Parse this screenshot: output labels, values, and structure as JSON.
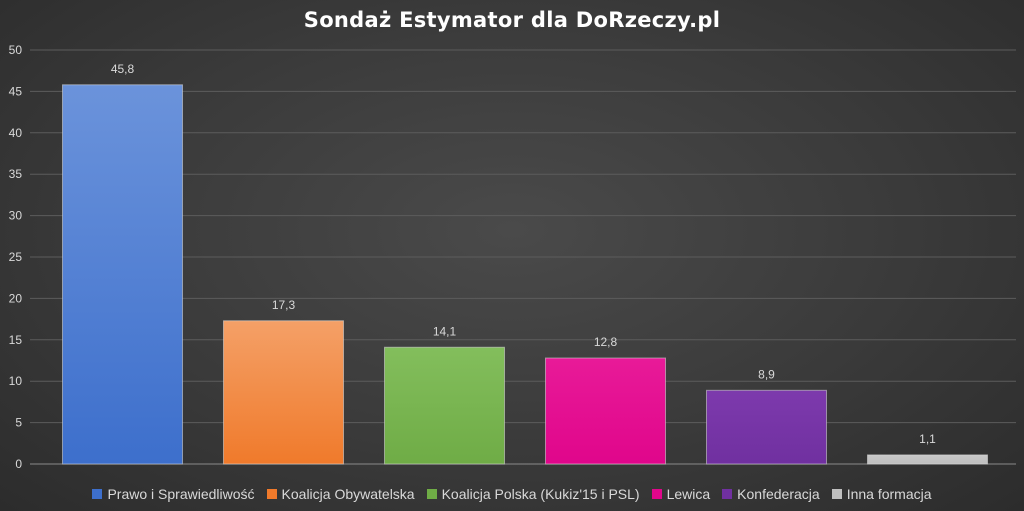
{
  "chart_data": {
    "type": "bar",
    "title": "Sondaż Estymator dla DoRzeczy.pl",
    "xlabel": "",
    "ylabel": "",
    "ylim": [
      0,
      50
    ],
    "yticks": [
      0,
      5,
      10,
      15,
      20,
      25,
      30,
      35,
      40,
      45,
      50
    ],
    "grid": true,
    "legend_position": "bottom",
    "categories": [
      "Prawo i Sprawiedliwość",
      "Koalicja Obywatelska",
      "Koalicja Polska (Kukiz'15 i PSL)",
      "Lewica",
      "Konfederacja",
      "Inna formacja"
    ],
    "values": [
      45.8,
      17.3,
      14.1,
      12.8,
      8.9,
      1.1
    ],
    "value_labels": [
      "45,8",
      "17,3",
      "14,1",
      "12,8",
      "8,9",
      "1,1"
    ],
    "colors": [
      "#3d6fcc",
      "#f07a2b",
      "#6fac46",
      "#e0068b",
      "#7030a0",
      "#bfbfbf"
    ],
    "colors_top": [
      "#6b93db",
      "#f4a067",
      "#83be5c",
      "#e81a98",
      "#7d3aad",
      "#c8c8c8"
    ]
  }
}
